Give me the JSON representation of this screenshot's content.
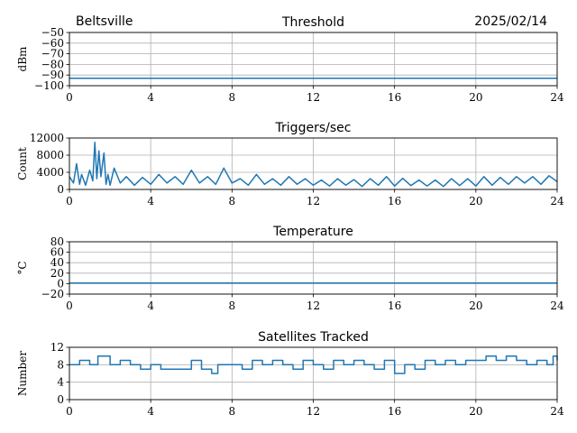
{
  "header": {
    "station": "Beltsville",
    "date": "2025/02/14"
  },
  "colors": {
    "series": "#1f77b4",
    "grid": "#b0b0b0",
    "axis": "#000000"
  },
  "chart_data": [
    {
      "type": "line",
      "title": "Threshold",
      "xlabel": "",
      "ylabel": "dBm",
      "xlim": [
        0,
        24
      ],
      "ylim": [
        -100,
        -50
      ],
      "xticks": [
        0,
        4,
        8,
        12,
        16,
        20,
        24
      ],
      "yticks": [
        -100,
        -90,
        -80,
        -70,
        -60,
        -50
      ],
      "grid": true,
      "series": [
        {
          "x": [
            0,
            2,
            4,
            6,
            8,
            10,
            12,
            14,
            16,
            18,
            20,
            22,
            24
          ],
          "y": [
            -93,
            -93,
            -93,
            -93,
            -93,
            -93,
            -93,
            -93,
            -93,
            -93,
            -93,
            -93,
            -93
          ]
        }
      ]
    },
    {
      "type": "line",
      "title": "Triggers/sec",
      "xlabel": "",
      "ylabel": "Count",
      "xlim": [
        0,
        24
      ],
      "ylim": [
        0,
        12000
      ],
      "xticks": [
        0,
        4,
        8,
        12,
        16,
        20,
        24
      ],
      "yticks": [
        0,
        4000,
        8000,
        12000
      ],
      "grid": true,
      "series": [
        {
          "x": [
            0,
            0.2,
            0.35,
            0.5,
            0.6,
            0.8,
            1.0,
            1.15,
            1.25,
            1.35,
            1.45,
            1.55,
            1.7,
            1.8,
            1.9,
            2.0,
            2.2,
            2.5,
            2.8,
            3.2,
            3.6,
            4.0,
            4.4,
            4.8,
            5.2,
            5.6,
            6.0,
            6.4,
            6.8,
            7.2,
            7.6,
            8.0,
            8.4,
            8.8,
            9.2,
            9.6,
            10.0,
            10.4,
            10.8,
            11.2,
            11.6,
            12.0,
            12.4,
            12.8,
            13.2,
            13.6,
            14.0,
            14.4,
            14.8,
            15.2,
            15.6,
            16.0,
            16.4,
            16.8,
            17.2,
            17.6,
            18.0,
            18.4,
            18.8,
            19.2,
            19.6,
            20.0,
            20.4,
            20.8,
            21.2,
            21.6,
            22.0,
            22.4,
            22.8,
            23.2,
            23.6,
            24.0
          ],
          "y": [
            3000,
            1500,
            6000,
            1200,
            3500,
            1000,
            4500,
            2000,
            11000,
            2500,
            9000,
            3000,
            8500,
            1200,
            3500,
            1000,
            5000,
            1500,
            3000,
            1000,
            2800,
            1200,
            3500,
            1500,
            3000,
            1200,
            4500,
            1500,
            3000,
            1200,
            5000,
            1500,
            2500,
            1000,
            3500,
            1200,
            2500,
            1000,
            3000,
            1200,
            2500,
            1000,
            2200,
            800,
            2500,
            1000,
            2300,
            700,
            2500,
            1000,
            3000,
            800,
            2600,
            900,
            2200,
            800,
            2200,
            700,
            2500,
            900,
            2500,
            800,
            3000,
            1000,
            2800,
            1200,
            3000,
            1500,
            3000,
            1200,
            3200,
            1800
          ]
        }
      ]
    },
    {
      "type": "line",
      "title": "Temperature",
      "xlabel": "",
      "ylabel": "°C",
      "xlim": [
        0,
        24
      ],
      "ylim": [
        -20,
        80
      ],
      "xticks": [
        0,
        4,
        8,
        12,
        16,
        20,
        24
      ],
      "yticks": [
        -20,
        0,
        20,
        40,
        60,
        80
      ],
      "grid": true,
      "series": [
        {
          "x": [
            0,
            24
          ],
          "y": [
            1,
            1
          ]
        }
      ]
    },
    {
      "type": "line",
      "title": "Satellites Tracked",
      "xlabel": "",
      "ylabel": "Number",
      "xlim": [
        0,
        24
      ],
      "ylim": [
        0,
        12
      ],
      "xticks": [
        0,
        4,
        8,
        12,
        16,
        20,
        24
      ],
      "yticks": [
        0,
        4,
        8,
        12
      ],
      "grid": true,
      "step": true,
      "series": [
        {
          "x": [
            0,
            0.5,
            1.0,
            1.4,
            2.0,
            2.5,
            3.0,
            3.5,
            4.0,
            4.5,
            5.0,
            5.5,
            6.0,
            6.5,
            7.0,
            7.3,
            7.6,
            8.0,
            8.5,
            9.0,
            9.5,
            10.0,
            10.5,
            11.0,
            11.5,
            12.0,
            12.5,
            13.0,
            13.5,
            14.0,
            14.5,
            15.0,
            15.5,
            16.0,
            16.5,
            17.0,
            17.5,
            18.0,
            18.5,
            19.0,
            19.5,
            20.0,
            20.5,
            21.0,
            21.5,
            22.0,
            22.5,
            23.0,
            23.5,
            23.8,
            24.0
          ],
          "y": [
            8,
            9,
            8,
            10,
            8,
            9,
            8,
            7,
            8,
            7,
            7,
            7,
            9,
            7,
            6,
            8,
            8,
            8,
            7,
            9,
            8,
            9,
            8,
            7,
            9,
            8,
            7,
            9,
            8,
            9,
            8,
            7,
            9,
            6,
            8,
            7,
            9,
            8,
            9,
            8,
            9,
            9,
            10,
            9,
            10,
            9,
            8,
            9,
            8,
            10,
            9
          ]
        }
      ]
    }
  ]
}
